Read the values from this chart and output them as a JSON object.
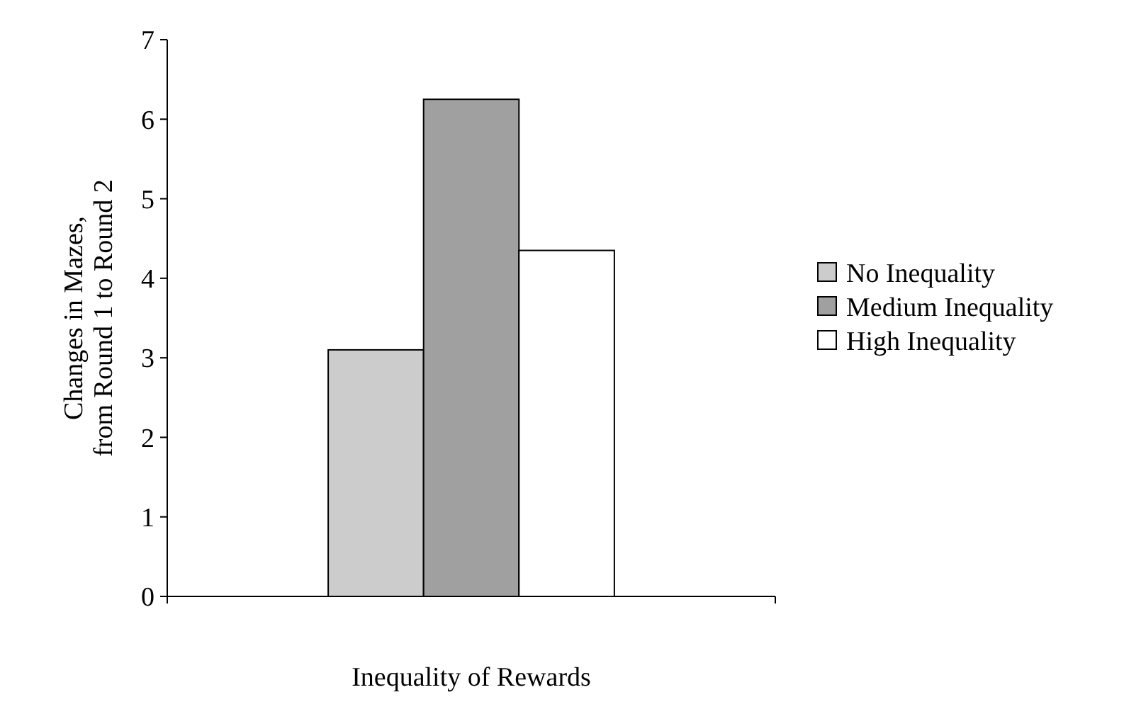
{
  "chart_data": {
    "type": "bar",
    "xlabel": "Inequality of Rewards",
    "ylabel": "Changes in Mazes,\nfrom Round 1 to Round 2",
    "categories": [
      null
    ],
    "series": [
      {
        "name": "No Inequality",
        "color": "#cccccc",
        "values": [
          3.1
        ]
      },
      {
        "name": "Medium Inequality",
        "color": "#a0a0a0",
        "values": [
          6.25
        ]
      },
      {
        "name": "High Inequality",
        "color": "#ffffff",
        "values": [
          4.35
        ]
      }
    ],
    "ylim": [
      0,
      7
    ],
    "yticks": [
      0,
      1,
      2,
      3,
      4,
      5,
      6,
      7
    ],
    "legend": "right",
    "grid": false
  }
}
